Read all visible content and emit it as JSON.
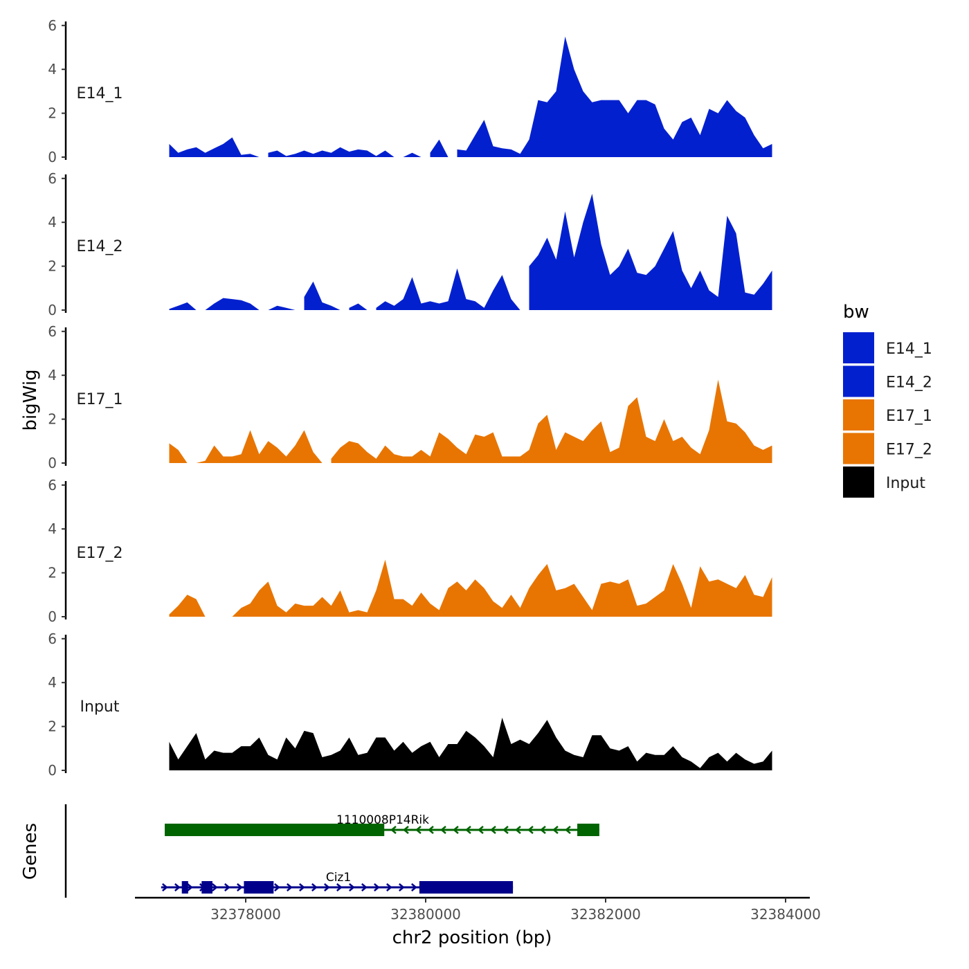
{
  "chart_data": {
    "type": "area",
    "xlabel": "chr2 position (bp)",
    "ylabel": "bigWig",
    "gene_track_label": "Genes",
    "xlim": [
      32377150,
      32383900
    ],
    "ylim": [
      0,
      6
    ],
    "x_ticks": [
      32378000,
      32380000,
      32382000,
      32384000
    ],
    "x_tick_labels": [
      "32378000",
      "32380000",
      "32382000",
      "32384000"
    ],
    "y_ticks": [
      0,
      2,
      4,
      6
    ],
    "y_tick_labels": [
      "0",
      "2",
      "4",
      "6"
    ],
    "grid": false,
    "legend": {
      "title": "bw",
      "position": "right",
      "entries": [
        {
          "label": "E14_1",
          "color": "#0320CF"
        },
        {
          "label": "E14_2",
          "color": "#0320CF"
        },
        {
          "label": "E17_1",
          "color": "#E87502"
        },
        {
          "label": "E17_2",
          "color": "#E87502"
        },
        {
          "label": "Input",
          "color": "#000000"
        }
      ]
    },
    "x_start": 32377150,
    "x_step": 100,
    "series": [
      {
        "name": "E14_1",
        "color": "#0320CF",
        "values": [
          0.6,
          0.2,
          0.35,
          0.45,
          0.2,
          0.4,
          0.6,
          0.9,
          0.1,
          0.15,
          0,
          0.2,
          0.3,
          0.05,
          0.15,
          0.3,
          0.15,
          0.3,
          0.2,
          0.45,
          0.25,
          0.35,
          0.3,
          0.05,
          0.3,
          0,
          0,
          0.2,
          0,
          0.2,
          0.8,
          0,
          0.35,
          0.3,
          1.0,
          1.7,
          0.5,
          0.4,
          0.35,
          0.15,
          0.8,
          2.6,
          2.5,
          3.0,
          5.5,
          4.0,
          3.0,
          2.5,
          2.6,
          2.6,
          2.6,
          2.0,
          2.6,
          2.6,
          2.4,
          1.3,
          0.8,
          1.6,
          1.8,
          1.0,
          2.2,
          2.0,
          2.6,
          2.1,
          1.8,
          1.0,
          0.4,
          0.6
        ]
      },
      {
        "name": "E14_2",
        "color": "#0320CF",
        "values": [
          0.05,
          0.2,
          0.35,
          0,
          0,
          0.3,
          0.55,
          0.5,
          0.45,
          0.3,
          0,
          0,
          0.2,
          0.1,
          0,
          0.6,
          1.3,
          0.35,
          0.2,
          0,
          0.1,
          0.3,
          0,
          0.1,
          0.4,
          0.2,
          0.5,
          1.5,
          0.3,
          0.4,
          0.3,
          0.4,
          1.9,
          0.5,
          0.4,
          0.1,
          0.9,
          1.6,
          0.5,
          0,
          2.0,
          2.5,
          3.3,
          2.3,
          4.5,
          2.4,
          4.0,
          5.3,
          3.0,
          1.6,
          2.0,
          2.8,
          1.7,
          1.6,
          2.0,
          2.8,
          3.6,
          1.8,
          1.0,
          1.8,
          0.9,
          0.6,
          4.3,
          3.5,
          0.8,
          0.7,
          1.2,
          1.8
        ]
      },
      {
        "name": "E17_1",
        "color": "#E87502",
        "values": [
          0.9,
          0.6,
          0,
          0,
          0.1,
          0.8,
          0.3,
          0.3,
          0.4,
          1.5,
          0.4,
          1.0,
          0.7,
          0.3,
          0.8,
          1.5,
          0.5,
          0,
          0.2,
          0.7,
          1.0,
          0.9,
          0.5,
          0.2,
          0.8,
          0.4,
          0.3,
          0.3,
          0.6,
          0.3,
          1.4,
          1.1,
          0.7,
          0.4,
          1.3,
          1.2,
          1.4,
          0.3,
          0.3,
          0.3,
          0.6,
          1.8,
          2.2,
          0.6,
          1.4,
          1.2,
          1.0,
          1.5,
          1.9,
          0.5,
          0.7,
          2.6,
          3.0,
          1.2,
          1.0,
          2.0,
          1.0,
          1.2,
          0.7,
          0.4,
          1.5,
          3.8,
          1.9,
          1.8,
          1.4,
          0.8,
          0.6,
          0.8
        ]
      },
      {
        "name": "E17_2",
        "color": "#E87502",
        "values": [
          0.1,
          0.5,
          1.0,
          0.8,
          0,
          0,
          0,
          0,
          0.4,
          0.6,
          1.2,
          1.6,
          0.5,
          0.2,
          0.6,
          0.5,
          0.5,
          0.9,
          0.5,
          1.2,
          0.2,
          0.3,
          0.2,
          1.2,
          2.6,
          0.8,
          0.8,
          0.5,
          1.1,
          0.6,
          0.3,
          1.3,
          1.6,
          1.2,
          1.7,
          1.3,
          0.7,
          0.4,
          1.0,
          0.4,
          1.3,
          1.9,
          2.4,
          1.2,
          1.3,
          1.5,
          0.9,
          0.3,
          1.5,
          1.6,
          1.5,
          1.7,
          0.5,
          0.6,
          0.9,
          1.2,
          2.4,
          1.5,
          0.4,
          2.3,
          1.6,
          1.7,
          1.5,
          1.3,
          1.9,
          1.0,
          0.9,
          1.8
        ]
      },
      {
        "name": "Input",
        "color": "#000000",
        "values": [
          1.3,
          0.5,
          1.1,
          1.7,
          0.5,
          0.9,
          0.8,
          0.8,
          1.1,
          1.1,
          1.5,
          0.7,
          0.5,
          1.5,
          1.0,
          1.8,
          1.7,
          0.6,
          0.7,
          0.9,
          1.5,
          0.7,
          0.8,
          1.5,
          1.5,
          0.9,
          1.3,
          0.8,
          1.1,
          1.3,
          0.6,
          1.2,
          1.2,
          1.8,
          1.5,
          1.1,
          0.6,
          2.4,
          1.2,
          1.4,
          1.2,
          1.7,
          2.3,
          1.5,
          0.9,
          0.7,
          0.6,
          1.6,
          1.6,
          1.0,
          0.9,
          1.1,
          0.4,
          0.8,
          0.7,
          0.7,
          1.1,
          0.6,
          0.4,
          0.1,
          0.6,
          0.8,
          0.4,
          0.8,
          0.5,
          0.3,
          0.4,
          0.9
        ]
      }
    ],
    "genes": [
      {
        "name": "1110008P14Rik",
        "strand": "-",
        "color": "#006400",
        "start": 32377100,
        "end": 32381930,
        "exons": [
          [
            32377100,
            32379540
          ],
          [
            32381685,
            32381930
          ]
        ]
      },
      {
        "name": "Ciz1",
        "strand": "+",
        "color": "#00008B",
        "start": 32377060,
        "end": 32380970,
        "exons": [
          [
            32377290,
            32377360
          ],
          [
            32377510,
            32377630
          ],
          [
            32377980,
            32378310
          ],
          [
            32379930,
            32380970
          ]
        ]
      }
    ]
  }
}
